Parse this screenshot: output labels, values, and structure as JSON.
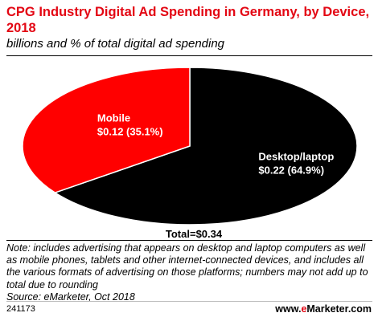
{
  "title": "CPG Industry Digital Ad Spending in Germany, by Device, 2018",
  "subtitle": "billions and % of total digital ad spending",
  "chart_data": {
    "type": "pie",
    "slices": [
      {
        "label": "Desktop/laptop",
        "value": 0.22,
        "percent": 64.9,
        "color": "#000000",
        "value_label": "$0.22 (64.9%)"
      },
      {
        "label": "Mobile",
        "value": 0.12,
        "percent": 35.1,
        "color": "#ff0000",
        "value_label": "$0.12 (35.1%)"
      }
    ],
    "total_label": "Total=$0.34"
  },
  "note": "Note: includes advertising that appears on desktop and laptop computers as well as mobile phones, tablets and other internet-connected devices, and includes all the various formats of advertising on those platforms; numbers may not add up to total due to rounding",
  "source": "Source: eMarketer, Oct 2018",
  "chart_id": "241173",
  "brand": {
    "prefix": "www.",
    "e": "e",
    "rest": "Marketer.com"
  }
}
